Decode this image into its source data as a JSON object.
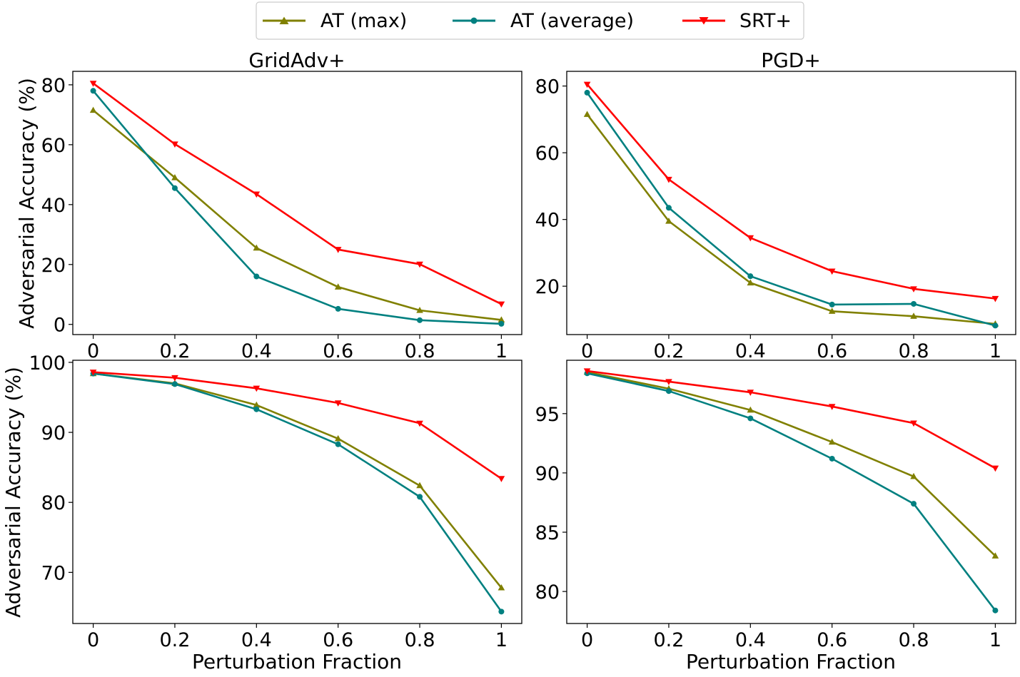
{
  "legend": {
    "entries": [
      {
        "label": "AT (max)",
        "color": "#808000",
        "marker": "triangle-up"
      },
      {
        "label": "AT (average)",
        "color": "#008080",
        "marker": "circle"
      },
      {
        "label": "SRT+",
        "color": "#ff0000",
        "marker": "triangle-down"
      }
    ]
  },
  "chart_data": [
    {
      "type": "line",
      "title": "GridAdv+",
      "xlabel": "",
      "ylabel": "Adversarial Accuracy (%)",
      "x": [
        0,
        0.2,
        0.4,
        0.6,
        0.8,
        1
      ],
      "x_tick_labels": [
        "0",
        "0.2",
        "0.4",
        "0.6",
        "0.8",
        "1"
      ],
      "y_ticks": [
        0,
        20,
        40,
        60,
        80
      ],
      "y_tick_labels": [
        "0",
        "20",
        "40",
        "60",
        "80"
      ],
      "xlim": [
        -0.05,
        1.05
      ],
      "ylim": [
        -3.4,
        84.5
      ],
      "series": [
        {
          "name": "AT (max)",
          "values": [
            71.5,
            49,
            25.5,
            12.5,
            4.7,
            1.5
          ]
        },
        {
          "name": "AT (average)",
          "values": [
            78,
            45.5,
            16,
            5.2,
            1.4,
            0.2
          ]
        },
        {
          "name": "SRT+",
          "values": [
            80.5,
            60.2,
            43.5,
            25,
            20.1,
            6.8
          ]
        }
      ]
    },
    {
      "type": "line",
      "title": "PGD+",
      "xlabel": "",
      "ylabel": "",
      "x": [
        0,
        0.2,
        0.4,
        0.6,
        0.8,
        1
      ],
      "x_tick_labels": [
        "0",
        "0.2",
        "0.4",
        "0.6",
        "0.8",
        "1"
      ],
      "y_ticks": [
        20,
        40,
        60,
        80
      ],
      "y_tick_labels": [
        "20",
        "40",
        "60",
        "80"
      ],
      "xlim": [
        -0.05,
        1.05
      ],
      "ylim": [
        5.5,
        84.4
      ],
      "series": [
        {
          "name": "AT (max)",
          "values": [
            71.5,
            39.5,
            21,
            12.5,
            11,
            8.7
          ]
        },
        {
          "name": "AT (average)",
          "values": [
            78,
            43.5,
            23,
            14.5,
            14.7,
            8.2
          ]
        },
        {
          "name": "SRT+",
          "values": [
            80.5,
            52,
            34.5,
            24.5,
            19.2,
            16.3
          ]
        }
      ]
    },
    {
      "type": "line",
      "title": "",
      "xlabel": "Perturbation Fraction",
      "ylabel": "Adversarial Accuracy (%)",
      "x": [
        0,
        0.2,
        0.4,
        0.6,
        0.8,
        1
      ],
      "x_tick_labels": [
        "0",
        "0.2",
        "0.4",
        "0.6",
        "0.8",
        "1"
      ],
      "y_ticks": [
        70,
        80,
        90,
        100
      ],
      "y_tick_labels": [
        "70",
        "80",
        "90",
        "100"
      ],
      "xlim": [
        -0.05,
        1.05
      ],
      "ylim": [
        62.7,
        100.3
      ],
      "series": [
        {
          "name": "AT (max)",
          "values": [
            98.4,
            97,
            93.9,
            89.1,
            82.4,
            67.8
          ]
        },
        {
          "name": "AT (average)",
          "values": [
            98.4,
            96.9,
            93.3,
            88.3,
            80.8,
            64.4
          ]
        },
        {
          "name": "SRT+",
          "values": [
            98.6,
            97.8,
            96.3,
            94.2,
            91.3,
            83.4
          ]
        }
      ]
    },
    {
      "type": "line",
      "title": "",
      "xlabel": "Perturbation Fraction",
      "ylabel": "",
      "x": [
        0,
        0.2,
        0.4,
        0.6,
        0.8,
        1
      ],
      "x_tick_labels": [
        "0",
        "0.2",
        "0.4",
        "0.6",
        "0.8",
        "1"
      ],
      "y_ticks": [
        80,
        85,
        90,
        95
      ],
      "y_tick_labels": [
        "80",
        "85",
        "90",
        "95"
      ],
      "xlim": [
        -0.05,
        1.05
      ],
      "ylim": [
        77.3,
        99.5
      ],
      "series": [
        {
          "name": "AT (max)",
          "values": [
            98.5,
            97.1,
            95.3,
            92.6,
            89.7,
            83
          ]
        },
        {
          "name": "AT (average)",
          "values": [
            98.4,
            96.9,
            94.6,
            91.2,
            87.4,
            78.4
          ]
        },
        {
          "name": "SRT+",
          "values": [
            98.6,
            97.7,
            96.8,
            95.6,
            94.2,
            90.4
          ]
        }
      ]
    }
  ]
}
